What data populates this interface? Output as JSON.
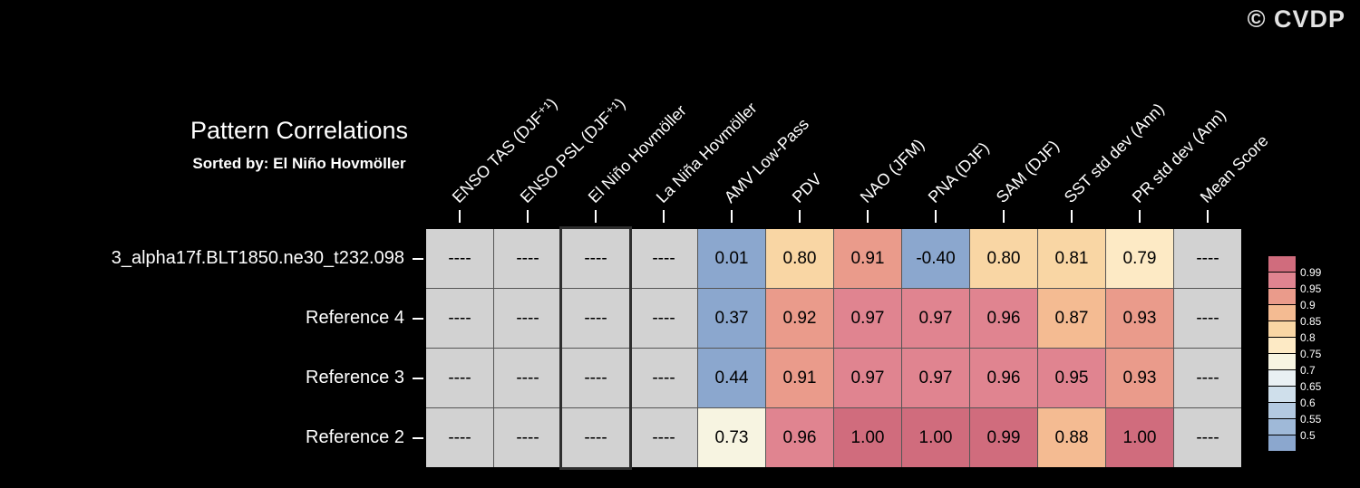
{
  "watermark": "© CVDP",
  "chart_data": {
    "type": "heatmap",
    "title": "Pattern Correlations",
    "subtitle": "Sorted by: El Niño Hovmöller",
    "columns": [
      "ENSO TAS (DJF⁺¹)",
      "ENSO PSL (DJF⁺¹)",
      "El Niño Hovmöller",
      "La Niña Hovmöller",
      "AMV Low-Pass",
      "PDV",
      "NAO (JFM)",
      "PNA (DJF)",
      "SAM (DJF)",
      "SST std dev (Ann)",
      "PR std dev (Ann)",
      "Mean Score"
    ],
    "rows": [
      "3_alpha17f.BLT1850.ne30_t232.098",
      "Reference 4",
      "Reference 3",
      "Reference 2"
    ],
    "values": [
      [
        null,
        null,
        null,
        null,
        0.01,
        0.8,
        0.91,
        -0.4,
        0.8,
        0.81,
        0.79,
        null
      ],
      [
        null,
        null,
        null,
        null,
        0.37,
        0.92,
        0.97,
        0.97,
        0.96,
        0.87,
        0.93,
        null
      ],
      [
        null,
        null,
        null,
        null,
        0.44,
        0.91,
        0.97,
        0.97,
        0.96,
        0.95,
        0.93,
        null
      ],
      [
        null,
        null,
        null,
        null,
        0.73,
        0.96,
        1.0,
        1.0,
        0.99,
        0.88,
        1.0,
        null
      ]
    ],
    "missing_label": "----",
    "sorted_column": "El Niño Hovmöller",
    "colorbar_position": "right",
    "color_scale": {
      "thresholds": [
        0.99,
        0.95,
        0.9,
        0.85,
        0.8,
        0.75,
        0.7,
        0.65,
        0.6,
        0.55,
        0.5
      ],
      "colors": [
        "#d06c7d",
        "#e08490",
        "#ea9b8b",
        "#f4bb92",
        "#f9d6a4",
        "#fdeac5",
        "#f7f4e1",
        "#e9f0f3",
        "#cfdfeb",
        "#b3c9e0",
        "#9fb9d8",
        "#8ba7ce"
      ],
      "missing_color": "#d2d2d2",
      "colorbar_tick_labels": [
        "0.99",
        "0.95",
        "0.9",
        "0.85",
        "0.8",
        "0.75",
        "0.7",
        "0.65",
        "0.6",
        "0.55",
        "0.5"
      ]
    }
  },
  "colors": {
    "background": "#000000",
    "label_text": "#ffffff",
    "cell_text": "#000000",
    "grid_line": "#555555",
    "sorted_column_outline": "#2e2e2e",
    "watermark_text": "#e3e3e3"
  }
}
